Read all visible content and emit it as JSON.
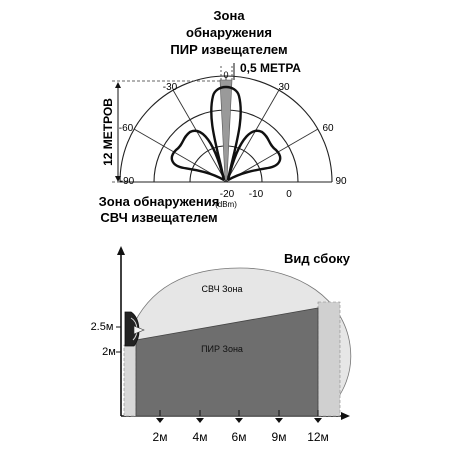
{
  "top_diagram": {
    "pir_title_lines": [
      "Зона",
      "обнаружения",
      "ПИР извещателем"
    ],
    "narrow_label": "0,5 МЕТРА",
    "range_label": "12 МЕТРОВ",
    "angle_labels": {
      "zero": "0",
      "left30": "-30",
      "right30": "30",
      "left60": "-60",
      "right60": "60",
      "left90": "-90",
      "right90": "90"
    },
    "radial_labels": [
      "-20",
      "-10",
      "0"
    ],
    "unit_label": "(dBm)",
    "mw_title_lines": [
      "Зона обнаружения",
      "СВЧ извещателем"
    ]
  },
  "bottom_diagram": {
    "side_view_label": "Вид сбоку",
    "mw_zone_label": "СВЧ Зона",
    "pir_zone_label": "ПИР Зона",
    "height_labels": [
      "2.5м",
      "2м"
    ],
    "distance_labels": [
      "2м",
      "4м",
      "6м",
      "9м",
      "12м"
    ],
    "colors": {
      "mw_zone": "#e6e6e6",
      "pir_zone": "#6e6e6e",
      "dashed_shadow": "#a0a0a0"
    }
  }
}
